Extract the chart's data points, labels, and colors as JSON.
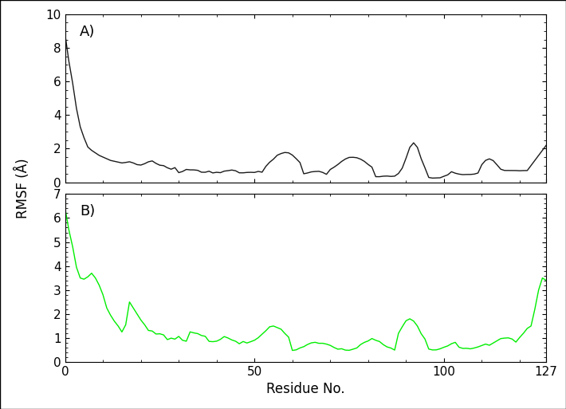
{
  "panel_A_label": "A)",
  "panel_B_label": "B)",
  "xlabel": "Residue No.",
  "ylabel": "RMSF (Å)",
  "xlim": [
    0,
    127
  ],
  "ylim_A": [
    0,
    10
  ],
  "ylim_B": [
    0,
    7
  ],
  "yticks_A": [
    0,
    2,
    4,
    6,
    8,
    10
  ],
  "yticks_B": [
    0,
    1,
    2,
    3,
    4,
    5,
    6,
    7
  ],
  "xticks": [
    0,
    50,
    100,
    127
  ],
  "line_color_A": "#1a1a1a",
  "line_color_B": "#00ee00",
  "line_width": 1.0,
  "background_color": "#ffffff",
  "figure_background": "#ffffff",
  "label_fontsize": 12,
  "tick_fontsize": 11,
  "panel_label_fontsize": 13
}
